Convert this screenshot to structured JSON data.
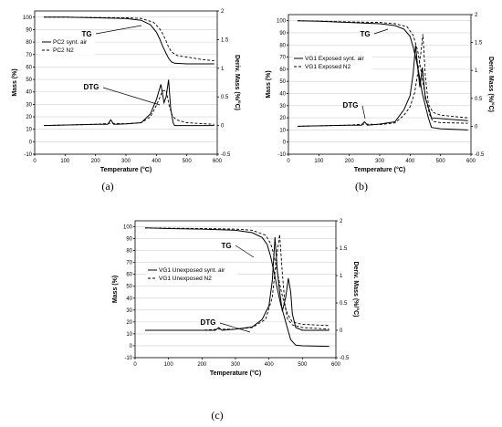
{
  "chart_data": [
    {
      "panel": "(a)",
      "type": "line",
      "xlabel": "Temperature (°C)",
      "ylabel": "Mass (%)",
      "y2label": "Deriv. Mass (%/°C)",
      "xlim": [
        0,
        600
      ],
      "ylim": [
        -10,
        105
      ],
      "y2lim": [
        -0.5,
        2
      ],
      "xticks": [
        "0",
        "100",
        "200",
        "300",
        "400",
        "500",
        "600"
      ],
      "yticks": [
        "-10",
        "0",
        "10",
        "20",
        "30",
        "40",
        "50",
        "60",
        "70",
        "80",
        "90",
        "100"
      ],
      "y2ticks": [
        "-0.5",
        "0",
        "0.5",
        "1",
        "1.5",
        "2"
      ],
      "annotations": [
        {
          "text": "TG"
        },
        {
          "text": "DTG"
        }
      ],
      "series": [
        {
          "name": "PC2 synt. air",
          "style": "solid",
          "axis": "left",
          "kind": "TG",
          "x": [
            30,
            100,
            200,
            300,
            350,
            380,
            400,
            410,
            420,
            430,
            440,
            450,
            460,
            500,
            590
          ],
          "y": [
            100,
            100,
            99.5,
            99,
            97.5,
            94,
            88,
            83,
            77,
            72,
            67,
            64,
            63,
            62.5,
            62.5
          ]
        },
        {
          "name": "PC2 N2",
          "style": "dashed",
          "axis": "left",
          "kind": "TG",
          "x": [
            30,
            100,
            200,
            300,
            350,
            390,
            410,
            420,
            430,
            440,
            450,
            470,
            500,
            550,
            590
          ],
          "y": [
            100,
            100,
            99.7,
            99.5,
            99,
            96,
            91,
            87,
            82,
            76,
            72,
            69,
            68,
            66,
            65
          ]
        },
        {
          "name": "PC2 synt. air",
          "style": "solid",
          "axis": "right",
          "kind": "DTG",
          "x": [
            30,
            200,
            240,
            250,
            260,
            300,
            350,
            380,
            400,
            415,
            425,
            432,
            440,
            447,
            455,
            460,
            590
          ],
          "y": [
            0,
            0.02,
            0.02,
            0.1,
            0.02,
            0.03,
            0.05,
            0.2,
            0.45,
            0.72,
            0.4,
            0.5,
            0.8,
            0.3,
            0.05,
            0,
            0
          ]
        },
        {
          "name": "PC2 N2",
          "style": "dashed",
          "axis": "right",
          "kind": "DTG",
          "x": [
            30,
            200,
            250,
            300,
            350,
            380,
            400,
            420,
            432,
            442,
            452,
            465,
            500,
            590
          ],
          "y": [
            0,
            0.02,
            0.04,
            0.03,
            0.05,
            0.15,
            0.35,
            0.6,
            0.62,
            0.35,
            0.18,
            0.1,
            0.05,
            0.02
          ]
        }
      ]
    },
    {
      "panel": "(b)",
      "type": "line",
      "xlabel": "Temperature (°C)",
      "ylabel": "Mass (%)",
      "y2label": "Deriv. Mass (%/°C)",
      "xlim": [
        0,
        600
      ],
      "ylim": [
        -10,
        105
      ],
      "y2lim": [
        -0.5,
        2
      ],
      "xticks": [
        "0",
        "100",
        "200",
        "300",
        "400",
        "500",
        "600"
      ],
      "yticks": [
        "-10",
        "0",
        "10",
        "20",
        "30",
        "40",
        "50",
        "60",
        "70",
        "80",
        "90",
        "100"
      ],
      "y2ticks": [
        "-0.5",
        "0",
        "0.5",
        "1",
        "1.5",
        "2"
      ],
      "annotations": [
        {
          "text": "TG"
        },
        {
          "text": "DTG"
        }
      ],
      "series": [
        {
          "name": "VG1 Exposed synt. air",
          "style": "solid",
          "axis": "left",
          "kind": "TG",
          "x": [
            30,
            100,
            200,
            300,
            350,
            380,
            400,
            410,
            420,
            430,
            440,
            450,
            460,
            470,
            500,
            590
          ],
          "y": [
            100,
            99.5,
            98.5,
            97.5,
            96,
            93,
            87,
            78,
            68,
            55,
            40,
            30,
            20,
            12,
            11,
            10
          ]
        },
        {
          "name": "VG1 Exposed N2",
          "style": "dashed",
          "axis": "left",
          "kind": "TG",
          "x": [
            30,
            100,
            200,
            300,
            350,
            390,
            410,
            425,
            435,
            445,
            455,
            465,
            475,
            500,
            590
          ],
          "y": [
            100,
            99.7,
            99,
            98.5,
            97.5,
            95,
            88,
            75,
            60,
            45,
            32,
            22,
            17,
            16,
            15.5
          ]
        },
        {
          "name": "VG1 Exposed synt. air",
          "style": "solid",
          "axis": "right",
          "kind": "DTG",
          "x": [
            30,
            200,
            240,
            250,
            260,
            300,
            350,
            380,
            400,
            410,
            418,
            425,
            432,
            440,
            450,
            460,
            470,
            590
          ],
          "y": [
            0,
            0.02,
            0.02,
            0.08,
            0.02,
            0.04,
            0.08,
            0.3,
            0.55,
            0.95,
            1.45,
            1.05,
            0.7,
            1.05,
            0.5,
            0.35,
            0.15,
            0.1
          ]
        },
        {
          "name": "VG1 Exposed N2",
          "style": "dashed",
          "axis": "right",
          "kind": "DTG",
          "x": [
            30,
            200,
            250,
            300,
            350,
            380,
            400,
            415,
            425,
            435,
            442,
            450,
            460,
            475,
            500,
            590
          ],
          "y": [
            0,
            0.02,
            0.04,
            0.03,
            0.06,
            0.2,
            0.35,
            0.6,
            0.95,
            1.3,
            1.65,
            0.9,
            0.4,
            0.25,
            0.2,
            0.15
          ]
        }
      ]
    },
    {
      "panel": "(c)",
      "type": "line",
      "xlabel": "Temperature (°C)",
      "ylabel": "Mass (%)",
      "y2label": "Deriv. Mass (%/°C)",
      "xlim": [
        0,
        600
      ],
      "ylim": [
        -10,
        105
      ],
      "y2lim": [
        -0.5,
        2
      ],
      "xticks": [
        "0",
        "100",
        "200",
        "300",
        "400",
        "500",
        "600"
      ],
      "yticks": [
        "-10",
        "0",
        "10",
        "20",
        "30",
        "40",
        "50",
        "60",
        "70",
        "80",
        "90",
        "100"
      ],
      "y2ticks": [
        "-0.5",
        "0",
        "0.5",
        "1",
        "1.5",
        "2"
      ],
      "annotations": [
        {
          "text": "TG"
        },
        {
          "text": "DTG"
        }
      ],
      "series": [
        {
          "name": "VG1 Unexposed synt. air",
          "style": "solid",
          "axis": "left",
          "kind": "TG",
          "x": [
            30,
            100,
            200,
            300,
            350,
            380,
            395,
            405,
            415,
            425,
            435,
            445,
            455,
            465,
            480,
            500,
            580
          ],
          "y": [
            99,
            98.5,
            98,
            97,
            95,
            91,
            85,
            75,
            62,
            48,
            35,
            25,
            15,
            5,
            0.5,
            0,
            -0.5
          ]
        },
        {
          "name": "VG1 Unexposed N2",
          "style": "dashed",
          "axis": "left",
          "kind": "TG",
          "x": [
            30,
            100,
            200,
            300,
            350,
            390,
            405,
            415,
            425,
            435,
            445,
            455,
            470,
            500,
            580
          ],
          "y": [
            99,
            98.8,
            98.5,
            98,
            97,
            93,
            86,
            76,
            62,
            48,
            36,
            27,
            20,
            18,
            17
          ]
        },
        {
          "name": "VG1 Unexposed synt. air",
          "style": "solid",
          "axis": "right",
          "kind": "DTG",
          "x": [
            30,
            200,
            240,
            250,
            260,
            300,
            350,
            380,
            400,
            410,
            418,
            425,
            432,
            440,
            450,
            458,
            465,
            470,
            480,
            500,
            580
          ],
          "y": [
            0,
            0,
            0,
            0.05,
            0,
            0.02,
            0.06,
            0.2,
            0.45,
            0.9,
            1.7,
            1.1,
            0.7,
            0.35,
            0.6,
            0.95,
            0.7,
            0.3,
            0.05,
            0,
            0
          ]
        },
        {
          "name": "VG1 Unexposed N2",
          "style": "dashed",
          "axis": "right",
          "kind": "DTG",
          "x": [
            30,
            200,
            250,
            300,
            350,
            390,
            410,
            422,
            432,
            440,
            448,
            456,
            470,
            500,
            580
          ],
          "y": [
            0,
            0,
            0.02,
            0.02,
            0.05,
            0.2,
            0.6,
            1.3,
            1.75,
            1.05,
            0.45,
            0.2,
            0.1,
            0.05,
            0.02
          ]
        }
      ]
    }
  ]
}
